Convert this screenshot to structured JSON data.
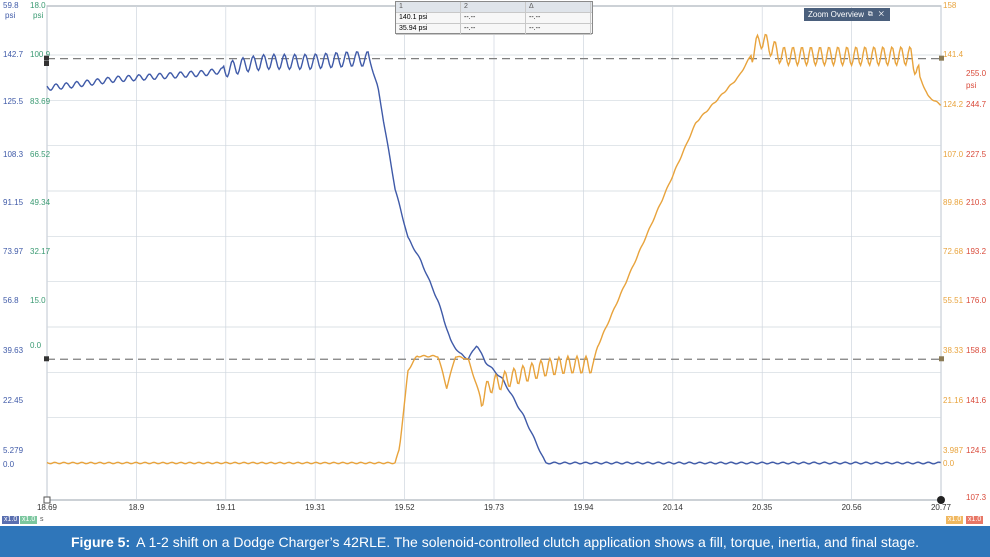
{
  "caption": {
    "figure_label": "Figure 5:",
    "text": "A 1-2 shift on a Dodge Charger’s 42RLE. The solenoid-controlled clutch application shows a fill, torque, inertia, and final stage."
  },
  "cursor_table": {
    "headers": [
      "1",
      "2",
      "Δ"
    ],
    "rows": [
      {
        "c1": "140.1 psi",
        "c2": "--.--",
        "c3": "--.--"
      },
      {
        "c1": "35.94 psi",
        "c2": "--.--",
        "c3": "--.--"
      }
    ]
  },
  "zoom_overview": {
    "title": "Zoom Overview",
    "controls": "⧉ ✕"
  },
  "corner_tags": {
    "left_a": "x1.0",
    "left_b": "x1.0",
    "left_unit": "s",
    "right_a": "x1.0",
    "right_b": "x1.0"
  },
  "colors": {
    "blue": "#3f5aa8",
    "orange": "#e8a33c",
    "green_axis": "#3a9a72",
    "red_axis": "#d94a3a",
    "grid": "#cfd6de",
    "marker": "#7f7f7f"
  },
  "chart_data": {
    "type": "line",
    "x_ticks": [
      "18.69",
      "18.9",
      "19.11",
      "19.31",
      "19.52",
      "19.73",
      "19.94",
      "20.14",
      "20.35",
      "20.56",
      "20.77"
    ],
    "x_range": [
      18.69,
      20.77
    ],
    "left_axis_blue": {
      "unit": "psi",
      "top": "59.8",
      "ticks": [
        "142.7",
        "125.5",
        "108.3",
        "91.15",
        "73.97",
        "56.8",
        "39.63",
        "22.45",
        "5.279",
        "0.0"
      ],
      "range": [
        0,
        158
      ]
    },
    "left_axis_green": {
      "unit": "psi",
      "top": "18.0",
      "ticks": [
        "100.9",
        "83.69",
        "66.52",
        "49.34",
        "32.17",
        "15.0",
        "0.0"
      ]
    },
    "right_axis_orange": {
      "unit": "psi",
      "top": "158",
      "ticks": [
        "141.4",
        "124.2",
        "107.0",
        "89.86",
        "72.68",
        "55.51",
        "38.33",
        "21.16",
        "3.987",
        "0.0"
      ],
      "range": [
        0,
        158
      ]
    },
    "right_axis_red": {
      "unit": "psi",
      "ticks": [
        "255.0",
        "244.7",
        "227.5",
        "210.3",
        "193.2",
        "176.0",
        "158.8",
        "141.6",
        "124.5",
        "107.3"
      ]
    },
    "reference_lines": [
      {
        "name": "cursor-1",
        "value": 140.1
      },
      {
        "name": "cursor-2",
        "value": 35.94
      }
    ],
    "series": [
      {
        "name": "",
        "color": "#3f5aa8",
        "points": [
          [
            18.69,
            130
          ],
          [
            18.75,
            131
          ],
          [
            18.85,
            133
          ],
          [
            18.95,
            134
          ],
          [
            19.05,
            135
          ],
          [
            19.1,
            136
          ],
          [
            19.15,
            138
          ],
          [
            19.2,
            139
          ],
          [
            19.3,
            139
          ],
          [
            19.4,
            140
          ],
          [
            19.44,
            140
          ],
          [
            19.46,
            130
          ],
          [
            19.5,
            95
          ],
          [
            19.53,
            78
          ],
          [
            19.56,
            70
          ],
          [
            19.6,
            56
          ],
          [
            19.63,
            42
          ],
          [
            19.65,
            38
          ],
          [
            19.67,
            36
          ],
          [
            19.69,
            41
          ],
          [
            19.71,
            35
          ],
          [
            19.75,
            29
          ],
          [
            19.8,
            16
          ],
          [
            19.85,
            0
          ],
          [
            19.95,
            0
          ],
          [
            20.2,
            0
          ],
          [
            20.5,
            0
          ],
          [
            20.77,
            0
          ]
        ]
      },
      {
        "name": "",
        "color": "#e8a33c",
        "points": [
          [
            18.69,
            0
          ],
          [
            19.0,
            0
          ],
          [
            19.3,
            0
          ],
          [
            19.5,
            0
          ],
          [
            19.51,
            5
          ],
          [
            19.53,
            32
          ],
          [
            19.55,
            37
          ],
          [
            19.6,
            37
          ],
          [
            19.62,
            26
          ],
          [
            19.64,
            37
          ],
          [
            19.67,
            36
          ],
          [
            19.7,
            22
          ],
          [
            19.72,
            27
          ],
          [
            19.78,
            30
          ],
          [
            19.85,
            33
          ],
          [
            19.9,
            34
          ],
          [
            19.96,
            34
          ],
          [
            19.97,
            40
          ],
          [
            20.1,
            84
          ],
          [
            20.2,
            118
          ],
          [
            20.3,
            134
          ],
          [
            20.35,
            147
          ],
          [
            20.4,
            141
          ],
          [
            20.5,
            141
          ],
          [
            20.6,
            141
          ],
          [
            20.7,
            141
          ],
          [
            20.74,
            127
          ],
          [
            20.77,
            124
          ]
        ]
      }
    ]
  }
}
